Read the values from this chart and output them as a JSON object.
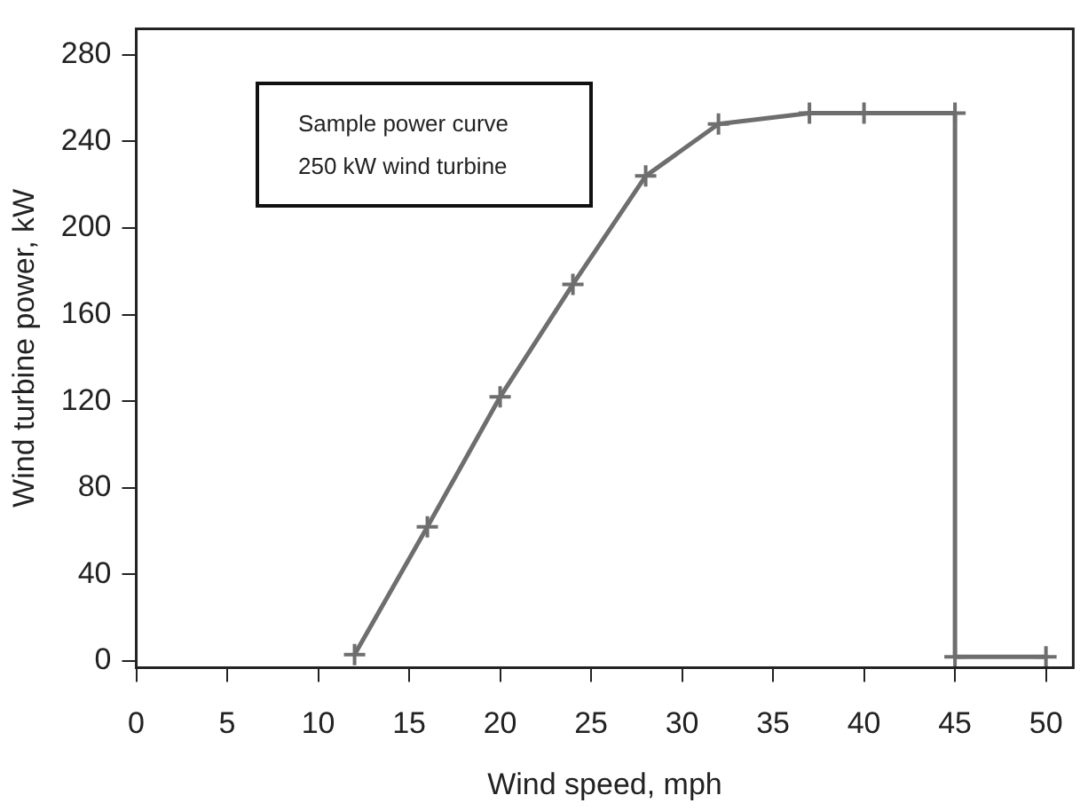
{
  "chart_data": {
    "type": "line",
    "xlabel": "Wind speed, mph",
    "ylabel": "Wind turbine power, kW",
    "annotations": [
      "Sample power curve",
      "250 kW wind turbine"
    ],
    "series": [
      {
        "color": "#6e6e6e",
        "x": [
          12,
          16,
          20,
          24,
          28,
          32,
          37,
          40,
          45,
          45,
          50
        ],
        "values": [
          3,
          62,
          122,
          174,
          224,
          248,
          253,
          253,
          253,
          2,
          2
        ]
      }
    ],
    "xlim": [
      0,
      51.5
    ],
    "xticks": [
      0,
      5,
      10,
      15,
      20,
      25,
      30,
      35,
      40,
      45,
      50
    ],
    "ylim": [
      -3,
      292
    ],
    "yticks": [
      0,
      40,
      80,
      120,
      160,
      200,
      240,
      280
    ],
    "grid": false,
    "legend": false,
    "marker": "cross",
    "line_style": "solid"
  }
}
